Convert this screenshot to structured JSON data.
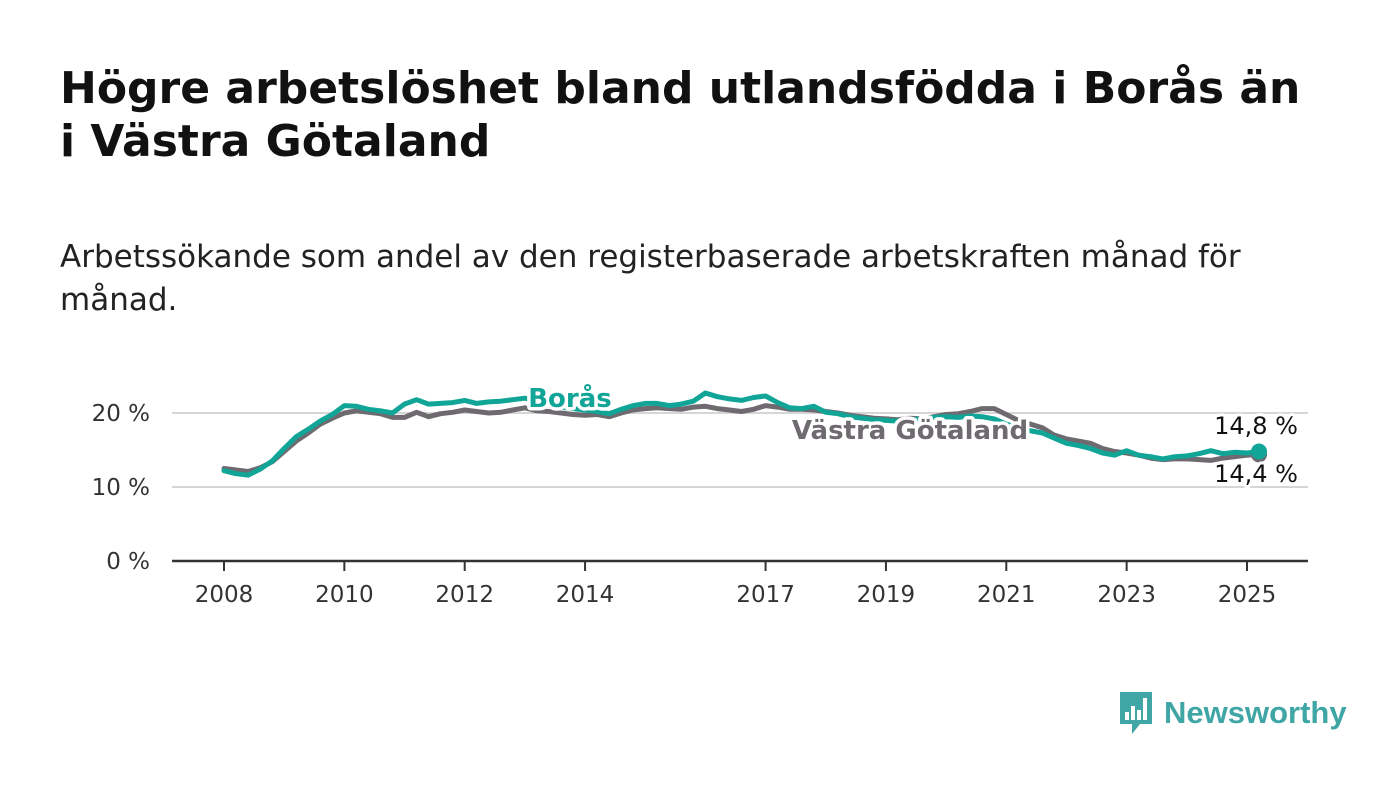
{
  "title": "Högre arbetslöshet bland utlandsfödda i Borås än i Västra Götaland",
  "subtitle": "Arbetssökande som andel av den registerbaserade arbetskraften månad för månad.",
  "logo": {
    "text": "Newsworthy",
    "icon": "newsworthy-logo-icon",
    "color": "#3fa5a5"
  },
  "chart_data": {
    "type": "line",
    "title": "",
    "xlabel": "",
    "ylabel": "",
    "ylim": [
      0,
      25
    ],
    "xlim": [
      2007.6,
      2026.0
    ],
    "grid": true,
    "y_ticks": [
      {
        "value": 0,
        "label": "0 %"
      },
      {
        "value": 10,
        "label": "10 %"
      },
      {
        "value": 20,
        "label": "20 %"
      }
    ],
    "x_ticks": [
      {
        "value": 2008,
        "label": "2008"
      },
      {
        "value": 2010,
        "label": "2010"
      },
      {
        "value": 2012,
        "label": "2012"
      },
      {
        "value": 2014,
        "label": "2014"
      },
      {
        "value": 2017,
        "label": "2017"
      },
      {
        "value": 2019,
        "label": "2019"
      },
      {
        "value": 2021,
        "label": "2021"
      },
      {
        "value": 2023,
        "label": "2023"
      },
      {
        "value": 2025,
        "label": "2025"
      }
    ],
    "series": [
      {
        "name": "Västra Götaland",
        "color": "#6e6a70",
        "end_label": "14,4 %",
        "points": [
          [
            2008.0,
            12.5
          ],
          [
            2008.2,
            12.3
          ],
          [
            2008.4,
            12.1
          ],
          [
            2008.6,
            12.6
          ],
          [
            2008.8,
            13.4
          ],
          [
            2009.0,
            14.8
          ],
          [
            2009.2,
            16.2
          ],
          [
            2009.4,
            17.3
          ],
          [
            2009.6,
            18.5
          ],
          [
            2009.8,
            19.3
          ],
          [
            2010.0,
            20.0
          ],
          [
            2010.2,
            20.3
          ],
          [
            2010.4,
            20.1
          ],
          [
            2010.6,
            19.9
          ],
          [
            2010.8,
            19.4
          ],
          [
            2011.0,
            19.4
          ],
          [
            2011.2,
            20.1
          ],
          [
            2011.4,
            19.5
          ],
          [
            2011.6,
            19.9
          ],
          [
            2011.8,
            20.1
          ],
          [
            2012.0,
            20.4
          ],
          [
            2012.2,
            20.2
          ],
          [
            2012.4,
            20.0
          ],
          [
            2012.6,
            20.1
          ],
          [
            2012.8,
            20.4
          ],
          [
            2013.0,
            20.7
          ],
          [
            2013.2,
            20.3
          ],
          [
            2013.4,
            20.2
          ],
          [
            2013.6,
            20.0
          ],
          [
            2013.8,
            19.8
          ],
          [
            2014.0,
            19.7
          ],
          [
            2014.2,
            19.8
          ],
          [
            2014.4,
            19.5
          ],
          [
            2014.6,
            20.0
          ],
          [
            2014.8,
            20.4
          ],
          [
            2015.0,
            20.6
          ],
          [
            2015.2,
            20.7
          ],
          [
            2015.4,
            20.6
          ],
          [
            2015.6,
            20.5
          ],
          [
            2015.8,
            20.8
          ],
          [
            2016.0,
            20.9
          ],
          [
            2016.2,
            20.6
          ],
          [
            2016.4,
            20.4
          ],
          [
            2016.6,
            20.2
          ],
          [
            2016.8,
            20.5
          ],
          [
            2017.0,
            21.0
          ],
          [
            2017.2,
            20.8
          ],
          [
            2017.4,
            20.5
          ],
          [
            2017.6,
            20.5
          ],
          [
            2017.8,
            20.4
          ],
          [
            2018.0,
            20.2
          ],
          [
            2018.2,
            20.0
          ],
          [
            2018.4,
            19.7
          ],
          [
            2018.6,
            19.5
          ],
          [
            2018.8,
            19.3
          ],
          [
            2019.0,
            19.2
          ],
          [
            2019.2,
            19.1
          ],
          [
            2019.4,
            19.3
          ],
          [
            2019.6,
            19.2
          ],
          [
            2019.8,
            19.5
          ],
          [
            2020.0,
            19.8
          ],
          [
            2020.2,
            19.9
          ],
          [
            2020.4,
            20.2
          ],
          [
            2020.6,
            20.6
          ],
          [
            2020.8,
            20.6
          ],
          [
            2021.0,
            19.8
          ],
          [
            2021.2,
            19.0
          ],
          [
            2021.4,
            18.5
          ],
          [
            2021.6,
            18.0
          ],
          [
            2021.8,
            17.0
          ],
          [
            2022.0,
            16.5
          ],
          [
            2022.2,
            16.2
          ],
          [
            2022.4,
            15.9
          ],
          [
            2022.6,
            15.2
          ],
          [
            2022.8,
            14.8
          ],
          [
            2023.0,
            14.6
          ],
          [
            2023.2,
            14.3
          ],
          [
            2023.4,
            13.9
          ],
          [
            2023.6,
            13.7
          ],
          [
            2023.8,
            13.8
          ],
          [
            2024.0,
            13.8
          ],
          [
            2024.2,
            13.7
          ],
          [
            2024.4,
            13.6
          ],
          [
            2024.6,
            13.9
          ],
          [
            2024.8,
            14.1
          ],
          [
            2025.0,
            14.3
          ],
          [
            2025.2,
            14.4
          ]
        ]
      },
      {
        "name": "Borås",
        "color": "#10a596",
        "end_label": "14,8 %",
        "points": [
          [
            2008.0,
            12.2
          ],
          [
            2008.2,
            11.8
          ],
          [
            2008.4,
            11.6
          ],
          [
            2008.6,
            12.4
          ],
          [
            2008.8,
            13.5
          ],
          [
            2009.0,
            15.2
          ],
          [
            2009.2,
            16.8
          ],
          [
            2009.4,
            17.8
          ],
          [
            2009.6,
            18.9
          ],
          [
            2009.8,
            19.8
          ],
          [
            2010.0,
            21.0
          ],
          [
            2010.2,
            20.9
          ],
          [
            2010.4,
            20.5
          ],
          [
            2010.6,
            20.3
          ],
          [
            2010.8,
            20.0
          ],
          [
            2011.0,
            21.2
          ],
          [
            2011.2,
            21.8
          ],
          [
            2011.4,
            21.2
          ],
          [
            2011.6,
            21.3
          ],
          [
            2011.8,
            21.4
          ],
          [
            2012.0,
            21.7
          ],
          [
            2012.2,
            21.3
          ],
          [
            2012.4,
            21.5
          ],
          [
            2012.6,
            21.6
          ],
          [
            2012.8,
            21.8
          ],
          [
            2013.0,
            22.0
          ],
          [
            2013.2,
            21.6
          ],
          [
            2013.4,
            21.2
          ],
          [
            2013.6,
            20.8
          ],
          [
            2013.8,
            20.6
          ],
          [
            2014.0,
            20.4
          ],
          [
            2014.2,
            20.2
          ],
          [
            2014.4,
            19.9
          ],
          [
            2014.6,
            20.5
          ],
          [
            2014.8,
            21.0
          ],
          [
            2015.0,
            21.3
          ],
          [
            2015.2,
            21.3
          ],
          [
            2015.4,
            21.0
          ],
          [
            2015.6,
            21.2
          ],
          [
            2015.8,
            21.6
          ],
          [
            2016.0,
            22.7
          ],
          [
            2016.2,
            22.2
          ],
          [
            2016.4,
            21.9
          ],
          [
            2016.6,
            21.7
          ],
          [
            2016.8,
            22.1
          ],
          [
            2017.0,
            22.3
          ],
          [
            2017.2,
            21.4
          ],
          [
            2017.4,
            20.7
          ],
          [
            2017.6,
            20.6
          ],
          [
            2017.8,
            20.9
          ],
          [
            2018.0,
            20.1
          ],
          [
            2018.2,
            19.9
          ],
          [
            2018.4,
            19.5
          ],
          [
            2018.6,
            19.3
          ],
          [
            2018.8,
            19.1
          ],
          [
            2019.0,
            19.0
          ],
          [
            2019.2,
            18.9
          ],
          [
            2019.4,
            19.1
          ],
          [
            2019.6,
            19.2
          ],
          [
            2019.8,
            19.4
          ],
          [
            2020.0,
            19.5
          ],
          [
            2020.2,
            19.4
          ],
          [
            2020.4,
            19.6
          ],
          [
            2020.6,
            19.5
          ],
          [
            2020.8,
            19.2
          ],
          [
            2021.0,
            18.5
          ],
          [
            2021.2,
            18.0
          ],
          [
            2021.4,
            17.6
          ],
          [
            2021.6,
            17.3
          ],
          [
            2021.8,
            16.6
          ],
          [
            2022.0,
            15.9
          ],
          [
            2022.2,
            15.6
          ],
          [
            2022.4,
            15.2
          ],
          [
            2022.6,
            14.6
          ],
          [
            2022.8,
            14.3
          ],
          [
            2023.0,
            14.9
          ],
          [
            2023.2,
            14.3
          ],
          [
            2023.4,
            14.1
          ],
          [
            2023.6,
            13.8
          ],
          [
            2023.8,
            14.1
          ],
          [
            2024.0,
            14.2
          ],
          [
            2024.2,
            14.5
          ],
          [
            2024.4,
            14.9
          ],
          [
            2024.6,
            14.5
          ],
          [
            2024.8,
            14.7
          ],
          [
            2025.0,
            14.6
          ],
          [
            2025.2,
            14.8
          ]
        ]
      }
    ]
  }
}
